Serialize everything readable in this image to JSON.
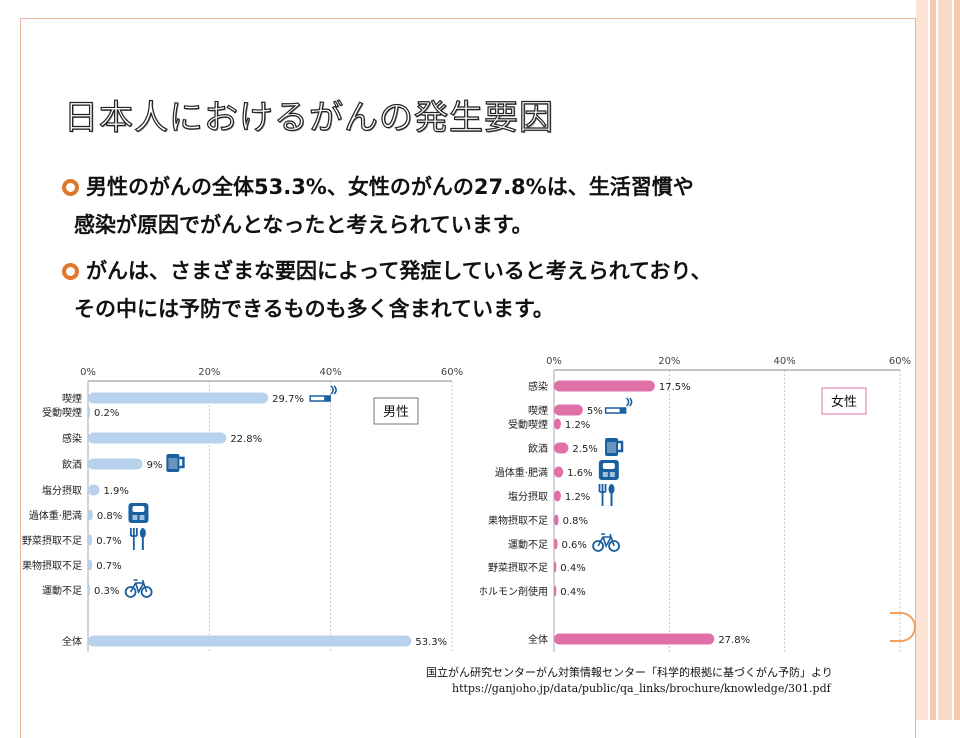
{
  "slide": {
    "title": "日本人におけるがんの発生要因",
    "bullets": [
      {
        "line1": "男性のがんの全体53.3%、女性のがんの27.8%は、生活習慣や",
        "line2": "感染が原因でがんとなったと考えられています。"
      },
      {
        "line1": "がんは、さまざまな要因によって発症していると考えられており、",
        "line2": "その中には予防できるものも多く含まれています。"
      }
    ],
    "source_line1": "国立がん研究センターがん対策情報センター「科学的根拠に基づくがん予防」より",
    "source_line2": "https://ganjoho.jp/data/public/qa_links/brochure/knowledge/301.pdf",
    "colors": {
      "accent": "#e07830",
      "male_bar": "#b8d2ee",
      "female_bar": "#e070a8",
      "icon": "#1a5fa0",
      "frame": "#e8b49c"
    }
  },
  "chart_data": [
    {
      "type": "bar",
      "orientation": "horizontal",
      "legend_label": "男性",
      "xlim": [
        0,
        60
      ],
      "ticks": [
        "0%",
        "20%",
        "40%",
        "60%"
      ],
      "categories": [
        "喫煙",
        "受動喫煙",
        "感染",
        "飲酒",
        "塩分摂取",
        "過体重·肥満",
        "野菜摂取不足",
        "果物摂取不足",
        "運動不足",
        "全体"
      ],
      "values": [
        29.7,
        0.2,
        22.8,
        9,
        1.9,
        0.8,
        0.7,
        0.7,
        0.3,
        53.3
      ],
      "value_labels": [
        "29.7%",
        "0.2%",
        "22.8%",
        "9%",
        "1.9%",
        "0.8%",
        "0.7%",
        "0.7%",
        "0.3%",
        "53.3%"
      ],
      "icons": [
        "cigarette-icon",
        "",
        "",
        "beer-icon",
        "",
        "scale-icon",
        "utensils-icon",
        "",
        "bicycle-icon",
        ""
      ]
    },
    {
      "type": "bar",
      "orientation": "horizontal",
      "legend_label": "女性",
      "xlim": [
        0,
        60
      ],
      "ticks": [
        "0%",
        "20%",
        "40%",
        "60%"
      ],
      "categories": [
        "感染",
        "喫煙",
        "受動喫煙",
        "飲酒",
        "過体重·肥満",
        "塩分摂取",
        "果物摂取不足",
        "運動不足",
        "野菜摂取不足",
        "ホルモン剤使用",
        "全体"
      ],
      "values": [
        17.5,
        5,
        1.2,
        2.5,
        1.6,
        1.2,
        0.8,
        0.6,
        0.4,
        0.4,
        27.8
      ],
      "value_labels": [
        "17.5%",
        "5%",
        "1.2%",
        "2.5%",
        "1.6%",
        "1.2%",
        "0.8%",
        "0.6%",
        "0.4%",
        "0.4%",
        "27.8%"
      ],
      "icons": [
        "",
        "cigarette-icon",
        "",
        "beer-icon",
        "scale-icon",
        "utensils-icon",
        "",
        "bicycle-icon",
        "",
        "",
        ""
      ]
    }
  ]
}
